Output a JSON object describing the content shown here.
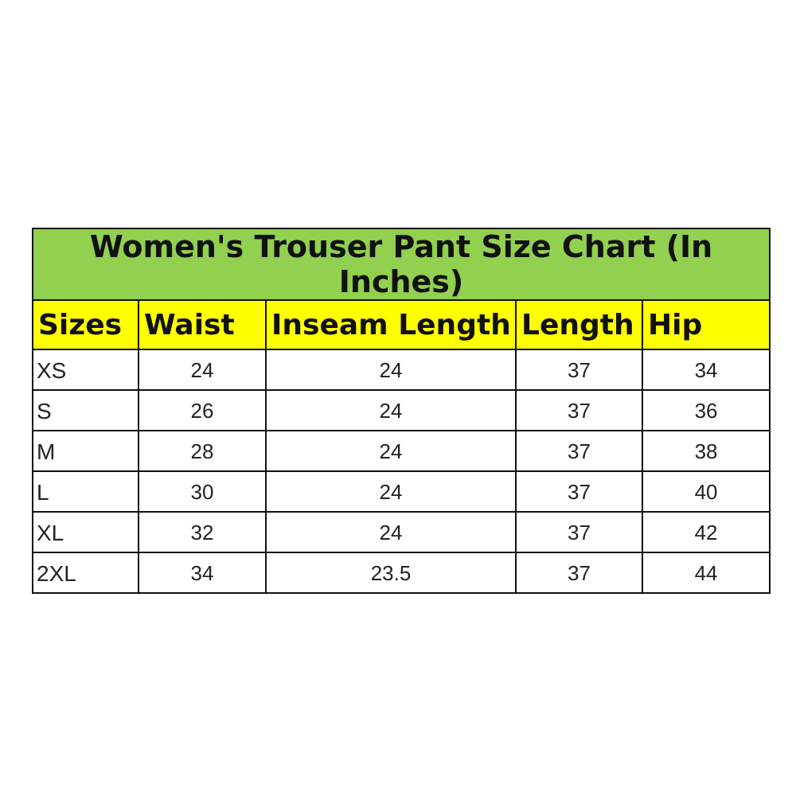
{
  "title": "Women's Trouser Pant Size Chart (In Inches)",
  "colors": {
    "title_bg": "#92d050",
    "header_bg": "#ffff00"
  },
  "headers": [
    "Sizes",
    "Waist",
    "Inseam Length",
    "Length",
    "Hip"
  ],
  "rows": [
    [
      "XS",
      "24",
      "24",
      "37",
      "34"
    ],
    [
      "S",
      "26",
      "24",
      "37",
      "36"
    ],
    [
      "M",
      "28",
      "24",
      "37",
      "38"
    ],
    [
      "L",
      "30",
      "24",
      "37",
      "40"
    ],
    [
      "XL",
      "32",
      "24",
      "37",
      "42"
    ],
    [
      "2XL",
      "34",
      "23.5",
      "37",
      "44"
    ]
  ]
}
